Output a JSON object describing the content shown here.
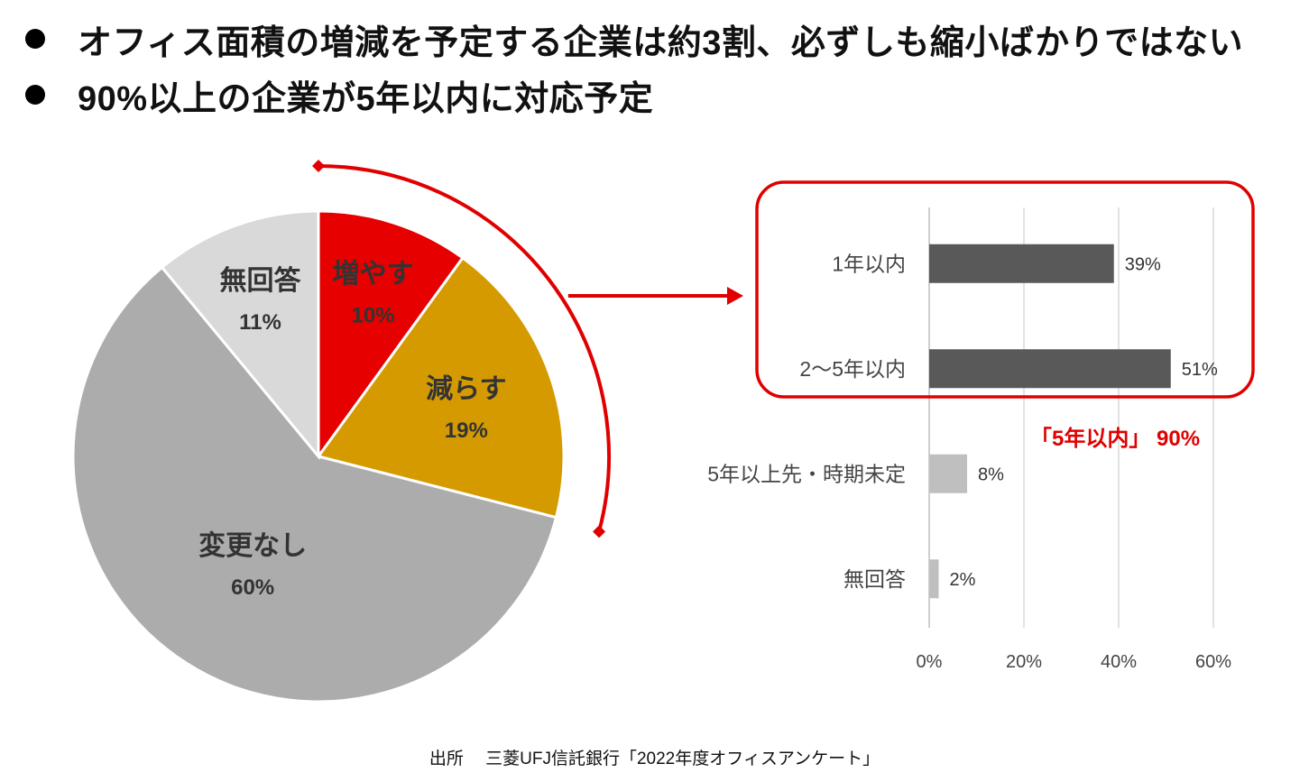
{
  "headline": {
    "bullet_1": "オフィス面積の増減を予定する企業は約3割、必ずしも縮小ばかりではない",
    "bullet_2": "90%以上の企業が5年以内に対応予定"
  },
  "chart_data": [
    {
      "type": "pie",
      "unit": "%",
      "slices": [
        {
          "label": "増やす",
          "value": 10,
          "color": "#e60000",
          "label_color": "#ffffff"
        },
        {
          "label": "減らす",
          "value": 19,
          "color": "#d49a00",
          "label_color": "#333333"
        },
        {
          "label": "変更なし",
          "value": 60,
          "color": "#acacac",
          "label_color": "#333333"
        },
        {
          "label": "無回答",
          "value": 11,
          "color": "#d9d9d9",
          "label_color": "#333333"
        }
      ],
      "start_angle_deg": 0,
      "direction": "clockwise"
    },
    {
      "type": "bar",
      "orientation": "horizontal",
      "categories": [
        "1年以内",
        "2～5年以内",
        "5年以上先・時期未定",
        "無回答"
      ],
      "values": [
        39,
        51,
        8,
        2
      ],
      "value_labels": [
        "39%",
        "51%",
        "8%",
        "2%"
      ],
      "bar_colors": [
        "#595959",
        "#595959",
        "#bfbfbf",
        "#bfbfbf"
      ],
      "xlim": [
        0,
        60
      ],
      "xticks": [
        0,
        20,
        40,
        60
      ],
      "xtick_labels": [
        "0%",
        "20%",
        "40%",
        "60%"
      ],
      "grid": true,
      "highlight": {
        "categories": [
          "1年以内",
          "2～5年以内"
        ],
        "color": "#e00000"
      }
    }
  ],
  "callout": "「5年以内」 90%",
  "source": "出所 　三菱UFJ信託銀行「2022年度オフィスアンケート」",
  "colors": {
    "accent": "#e00000"
  }
}
